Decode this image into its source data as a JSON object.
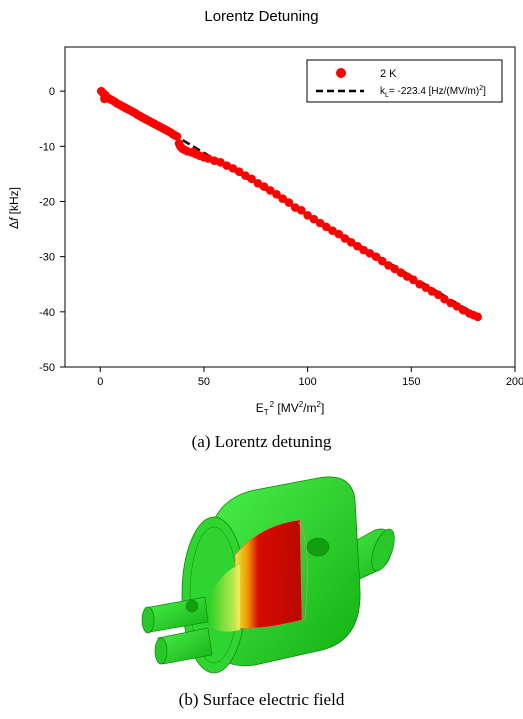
{
  "chart_data": {
    "type": "scatter",
    "title": "Lorentz Detuning",
    "xlabel": "E_T^2 [MV^2/m^2]",
    "ylabel": "Δf [kHz]",
    "xlim": [
      -17,
      200
    ],
    "ylim": [
      -50,
      8
    ],
    "xticks": [
      "0",
      "50",
      "100",
      "150",
      "200"
    ],
    "yticks": [
      "0",
      "-10",
      "-20",
      "-30",
      "-40",
      "-50"
    ],
    "grid": false,
    "legend_position": "top-right",
    "series": [
      {
        "name": "2 K",
        "kind": "scatter",
        "color": "#ff0000",
        "x": [
          0.5,
          1.5,
          2.5,
          2,
          3,
          4,
          5,
          6,
          7,
          8,
          9,
          10,
          11,
          12,
          13,
          14,
          15,
          16,
          17,
          18,
          19,
          20,
          21,
          22,
          23,
          24,
          25,
          26,
          27,
          28,
          29,
          30,
          31,
          32,
          33,
          34,
          35,
          36,
          37,
          38,
          38.5,
          39,
          40,
          41,
          42,
          44,
          45,
          46,
          48,
          50,
          52,
          55,
          58,
          61,
          64,
          67,
          70,
          73,
          76,
          79,
          82,
          85,
          88,
          91,
          94,
          97,
          100,
          103,
          106,
          109,
          112,
          115,
          118,
          121,
          124,
          127,
          130,
          133,
          136,
          139,
          142,
          145,
          148,
          151,
          154,
          157,
          160,
          163,
          166,
          169,
          172,
          175,
          178,
          180,
          182
        ],
        "y": [
          0,
          -0.4,
          -0.7,
          -1.4,
          -1.1,
          -1.3,
          -1.5,
          -1.7,
          -1.9,
          -2.2,
          -2.4,
          -2.6,
          -2.8,
          -3.0,
          -3.2,
          -3.4,
          -3.6,
          -3.8,
          -4.0,
          -4.3,
          -4.5,
          -4.7,
          -4.9,
          -5.1,
          -5.3,
          -5.5,
          -5.7,
          -5.9,
          -6.1,
          -6.3,
          -6.5,
          -6.7,
          -6.9,
          -7.1,
          -7.3,
          -7.5,
          -7.8,
          -8.0,
          -8.2,
          -9.5,
          -9.9,
          -10.2,
          -10.5,
          -10.7,
          -10.9,
          -11.1,
          -11.0,
          -11.4,
          -11.7,
          -12.0,
          -12.2,
          -12.6,
          -12.9,
          -13.5,
          -14.0,
          -14.6,
          -15.3,
          -15.9,
          -16.7,
          -17.3,
          -18.0,
          -18.7,
          -19.5,
          -20.2,
          -21.1,
          -21.6,
          -22.5,
          -23.2,
          -23.9,
          -24.6,
          -25.3,
          -25.9,
          -26.7,
          -27.4,
          -28.1,
          -28.8,
          -29.4,
          -30.0,
          -30.8,
          -31.6,
          -32.2,
          -32.9,
          -33.6,
          -34.2,
          -35.0,
          -35.6,
          -36.3,
          -36.9,
          -37.7,
          -38.4,
          -39.0,
          -39.7,
          -40.3,
          -40.6,
          -40.9
        ]
      },
      {
        "name": "k_L= -223.4 [Hz/(MV/m)^2]",
        "kind": "fit-line",
        "color": "#000000",
        "x": [
          0,
          182
        ],
        "y": [
          0,
          -40.7
        ]
      }
    ]
  },
  "texts": {
    "title": "Lorentz Detuning",
    "xlabel_main": "E",
    "xlabel_sub": "T",
    "xlabel_sup": "2",
    "xlabel_rest1": " [MV",
    "xlabel_sup2": "2",
    "xlabel_rest2": "/m",
    "xlabel_sup3": "2",
    "xlabel_rest3": "]",
    "ylabel_delta": "Δ",
    "ylabel_f": "f",
    "ylabel_rest": " [kHz]",
    "legend_1": "2 K",
    "legend_2_k": "k",
    "legend_2_sub": "L",
    "legend_2_rest": "= -223.4 [Hz/(MV/m)",
    "legend_2_sup": "2",
    "legend_2_end": "]",
    "caption_a": "(a) Lorentz detuning",
    "caption_b": "(b) Surface electric field"
  },
  "colors": {
    "points": "#ff0000",
    "fit": "#000000",
    "cavity_body": "#22d022",
    "field_high": "#d00000",
    "field_mid": "#ffdd00"
  }
}
